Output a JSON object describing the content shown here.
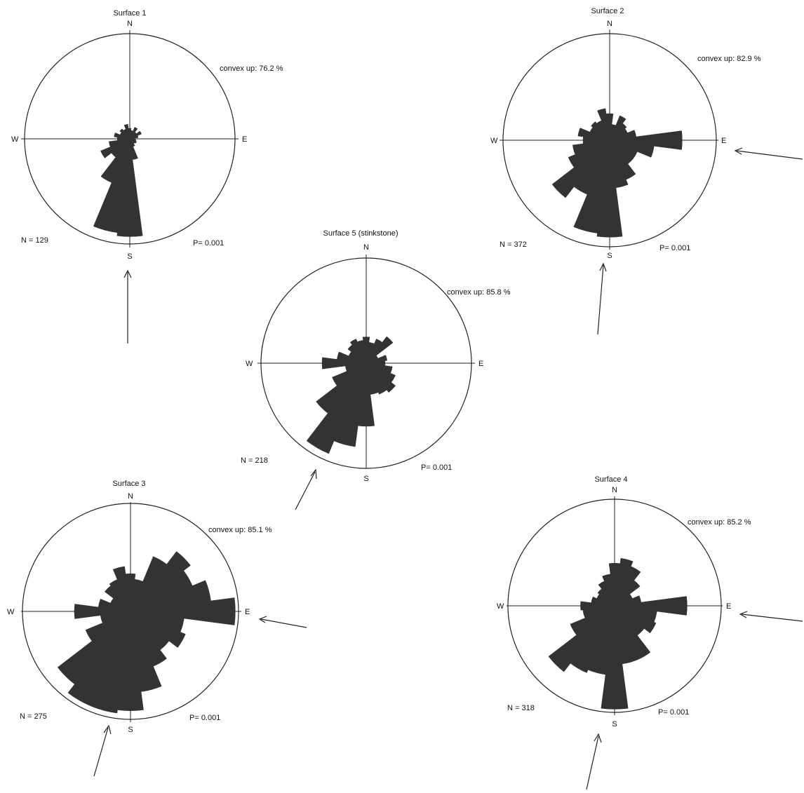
{
  "ink_color": "#333333",
  "chart_data": [
    {
      "type": "rose",
      "title": "Surface 1",
      "directions": {
        "n": "N",
        "s": "S",
        "e": "E",
        "w": "W"
      },
      "convex_up": "convex up: 76.2 %",
      "n_label": "N = 129",
      "p_label": "P= 0.001",
      "arrow_from_deg": 180,
      "petals": [
        {
          "az": 0,
          "r": 0.1
        },
        {
          "az": 15,
          "r": 0.08
        },
        {
          "az": 30,
          "r": 0.12
        },
        {
          "az": 45,
          "r": 0.08
        },
        {
          "az": 60,
          "r": 0.12
        },
        {
          "az": 75,
          "r": 0.08
        },
        {
          "az": 90,
          "r": 0.05
        },
        {
          "az": 105,
          "r": 0.06
        },
        {
          "az": 120,
          "r": 0.07
        },
        {
          "az": 135,
          "r": 0.06
        },
        {
          "az": 150,
          "r": 0.08
        },
        {
          "az": 165,
          "r": 0.2
        },
        {
          "az": 180,
          "r": 0.93
        },
        {
          "az": 195,
          "r": 0.9
        },
        {
          "az": 210,
          "r": 0.45
        },
        {
          "az": 225,
          "r": 0.22
        },
        {
          "az": 240,
          "r": 0.3
        },
        {
          "az": 255,
          "r": 0.2
        },
        {
          "az": 270,
          "r": 0.12
        },
        {
          "az": 285,
          "r": 0.15
        },
        {
          "az": 300,
          "r": 0.1
        },
        {
          "az": 315,
          "r": 0.12
        },
        {
          "az": 330,
          "r": 0.1
        },
        {
          "az": 345,
          "r": 0.14
        }
      ]
    },
    {
      "type": "rose",
      "title": "Surface 2",
      "directions": {
        "n": "N",
        "s": "S",
        "e": "E",
        "w": "W"
      },
      "convex_up": "convex up: 82.9 %",
      "n_label": "N = 372",
      "p_label": "P= 0.001",
      "arrow_from_deg": 100,
      "petals": [
        {
          "az": 0,
          "r": 0.25
        },
        {
          "az": 15,
          "r": 0.15
        },
        {
          "az": 30,
          "r": 0.25
        },
        {
          "az": 45,
          "r": 0.2
        },
        {
          "az": 60,
          "r": 0.18
        },
        {
          "az": 75,
          "r": 0.25
        },
        {
          "az": 90,
          "r": 0.68
        },
        {
          "az": 105,
          "r": 0.42
        },
        {
          "az": 120,
          "r": 0.28
        },
        {
          "az": 135,
          "r": 0.28
        },
        {
          "az": 150,
          "r": 0.4
        },
        {
          "az": 165,
          "r": 0.45
        },
        {
          "az": 180,
          "r": 0.91
        },
        {
          "az": 195,
          "r": 0.88
        },
        {
          "az": 210,
          "r": 0.55
        },
        {
          "az": 225,
          "r": 0.68
        },
        {
          "az": 240,
          "r": 0.42
        },
        {
          "az": 255,
          "r": 0.35
        },
        {
          "az": 270,
          "r": 0.25
        },
        {
          "az": 285,
          "r": 0.3
        },
        {
          "az": 300,
          "r": 0.2
        },
        {
          "az": 315,
          "r": 0.22
        },
        {
          "az": 330,
          "r": 0.2
        },
        {
          "az": 345,
          "r": 0.3
        }
      ]
    },
    {
      "type": "rose",
      "title": "Surface 5 (stinkstone)",
      "directions": {
        "n": "N",
        "s": "S",
        "e": "E",
        "w": "W"
      },
      "convex_up": "convex up: 85.8 %",
      "n_label": "N = 218",
      "p_label": "P= 0.001",
      "arrow_from_deg": 210,
      "petals": [
        {
          "az": 0,
          "r": 0.25
        },
        {
          "az": 15,
          "r": 0.2
        },
        {
          "az": 30,
          "r": 0.25
        },
        {
          "az": 45,
          "r": 0.32
        },
        {
          "az": 60,
          "r": 0.12
        },
        {
          "az": 75,
          "r": 0.2
        },
        {
          "az": 90,
          "r": 0.18
        },
        {
          "az": 105,
          "r": 0.25
        },
        {
          "az": 120,
          "r": 0.3
        },
        {
          "az": 135,
          "r": 0.35
        },
        {
          "az": 150,
          "r": 0.32
        },
        {
          "az": 165,
          "r": 0.3
        },
        {
          "az": 180,
          "r": 0.6
        },
        {
          "az": 195,
          "r": 0.8
        },
        {
          "az": 210,
          "r": 0.93
        },
        {
          "az": 225,
          "r": 0.6
        },
        {
          "az": 240,
          "r": 0.35
        },
        {
          "az": 255,
          "r": 0.2
        },
        {
          "az": 270,
          "r": 0.42
        },
        {
          "az": 285,
          "r": 0.28
        },
        {
          "az": 300,
          "r": 0.18
        },
        {
          "az": 315,
          "r": 0.22
        },
        {
          "az": 330,
          "r": 0.25
        },
        {
          "az": 345,
          "r": 0.22
        }
      ]
    },
    {
      "type": "rose",
      "title": "Surface 3",
      "directions": {
        "n": "N",
        "s": "S",
        "e": "E",
        "w": "W"
      },
      "convex_up": "convex up: 85.1 %",
      "n_label": "N = 275",
      "p_label": "P= 0.001",
      "arrow_from_deg": 200,
      "petals": [
        {
          "az": 0,
          "r": 0.35
        },
        {
          "az": 15,
          "r": 0.3
        },
        {
          "az": 30,
          "r": 0.55
        },
        {
          "az": 45,
          "r": 0.7
        },
        {
          "az": 60,
          "r": 0.62
        },
        {
          "az": 75,
          "r": 0.75
        },
        {
          "az": 90,
          "r": 0.97
        },
        {
          "az": 105,
          "r": 0.5
        },
        {
          "az": 120,
          "r": 0.55
        },
        {
          "az": 135,
          "r": 0.45
        },
        {
          "az": 150,
          "r": 0.55
        },
        {
          "az": 165,
          "r": 0.75
        },
        {
          "az": 180,
          "r": 0.92
        },
        {
          "az": 195,
          "r": 0.95
        },
        {
          "az": 210,
          "r": 0.95
        },
        {
          "az": 225,
          "r": 0.85
        },
        {
          "az": 240,
          "r": 0.45
        },
        {
          "az": 255,
          "r": 0.28
        },
        {
          "az": 270,
          "r": 0.52
        },
        {
          "az": 285,
          "r": 0.3
        },
        {
          "az": 300,
          "r": 0.2
        },
        {
          "az": 315,
          "r": 0.3
        },
        {
          "az": 330,
          "r": 0.32
        },
        {
          "az": 345,
          "r": 0.42
        }
      ]
    },
    {
      "type": "rose",
      "title": "Surface 4",
      "directions": {
        "n": "N",
        "s": "S",
        "e": "E",
        "w": "W"
      },
      "convex_up": "convex up: 85.2 %",
      "n_label": "N = 318",
      "p_label": "P= 0.001",
      "arrow_from_deg": 190,
      "petals": [
        {
          "az": 0,
          "r": 0.4
        },
        {
          "az": 15,
          "r": 0.45
        },
        {
          "az": 30,
          "r": 0.4
        },
        {
          "az": 45,
          "r": 0.3
        },
        {
          "az": 60,
          "r": 0.18
        },
        {
          "az": 75,
          "r": 0.25
        },
        {
          "az": 90,
          "r": 0.68
        },
        {
          "az": 105,
          "r": 0.4
        },
        {
          "az": 120,
          "r": 0.42
        },
        {
          "az": 135,
          "r": 0.35
        },
        {
          "az": 150,
          "r": 0.55
        },
        {
          "az": 165,
          "r": 0.55
        },
        {
          "az": 180,
          "r": 0.97
        },
        {
          "az": 195,
          "r": 0.65
        },
        {
          "az": 210,
          "r": 0.68
        },
        {
          "az": 225,
          "r": 0.78
        },
        {
          "az": 240,
          "r": 0.45
        },
        {
          "az": 255,
          "r": 0.3
        },
        {
          "az": 270,
          "r": 0.32
        },
        {
          "az": 285,
          "r": 0.22
        },
        {
          "az": 300,
          "r": 0.18
        },
        {
          "az": 315,
          "r": 0.2
        },
        {
          "az": 330,
          "r": 0.25
        },
        {
          "az": 345,
          "r": 0.3
        }
      ]
    }
  ]
}
